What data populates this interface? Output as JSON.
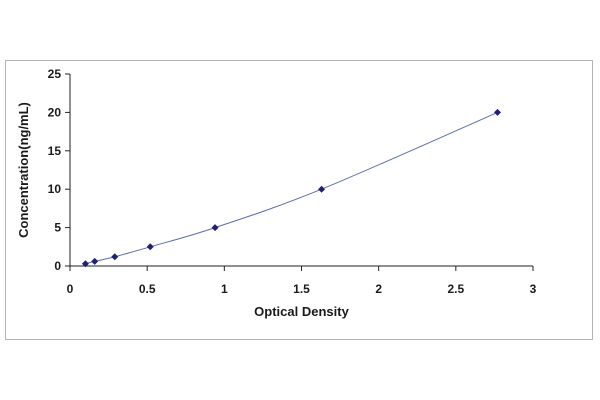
{
  "chart_data": {
    "type": "scatter",
    "title": "",
    "xlabel": "Optical Density",
    "ylabel": "Concentration(ng/mL)",
    "xlim": [
      0,
      3
    ],
    "ylim": [
      0,
      25
    ],
    "xticks": [
      "0",
      "0.5",
      "1",
      "1.5",
      "2",
      "2.5",
      "3"
    ],
    "yticks": [
      "0",
      "5",
      "10",
      "15",
      "20",
      "25"
    ],
    "grid": false,
    "legend": "none",
    "trendline": "smooth curve through points",
    "series": [
      {
        "x": [
          0.1,
          0.16,
          0.29,
          0.52,
          0.94,
          1.63,
          2.77
        ],
        "y": [
          0.3,
          0.6,
          1.2,
          2.5,
          5.0,
          10.0,
          20.0
        ]
      }
    ],
    "colors": {
      "marker": "#1f1f7a",
      "line": "#5a6ea8",
      "axis": "#222222",
      "frame": "#b5b5b5"
    }
  }
}
